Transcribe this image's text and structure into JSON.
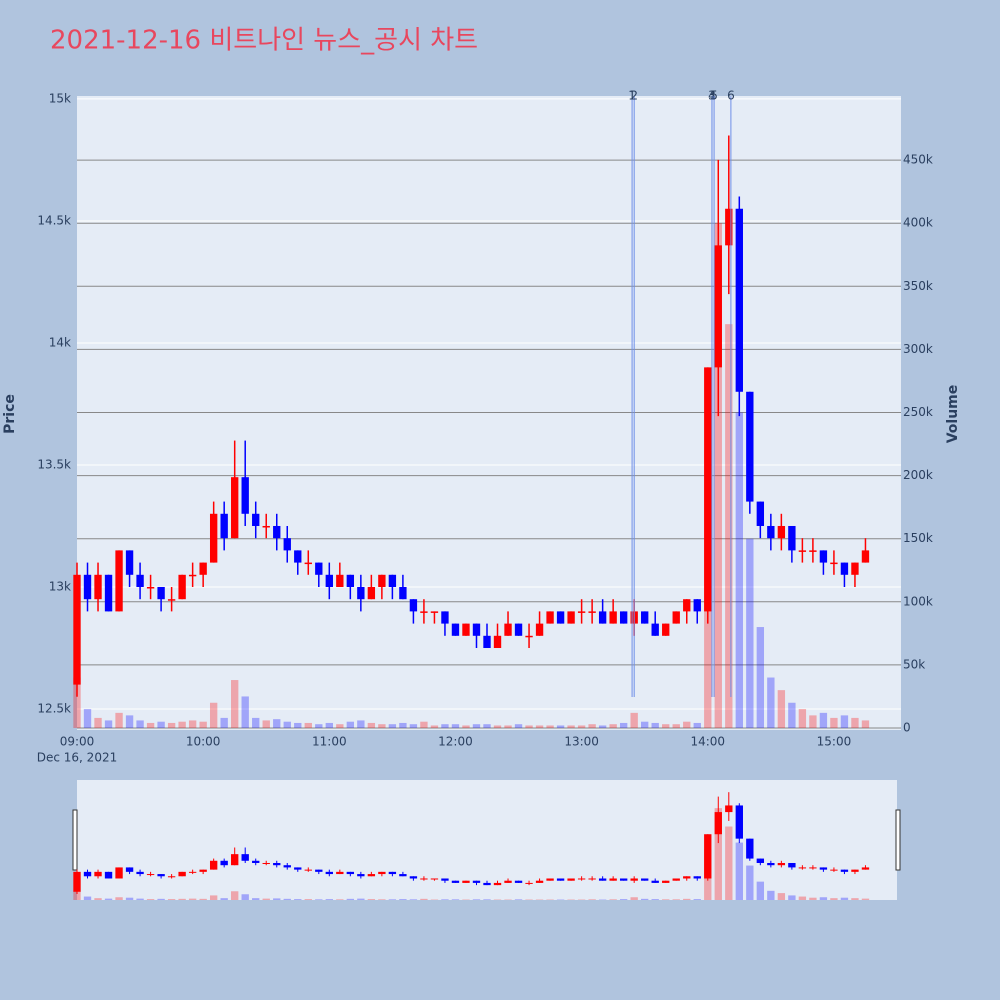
{
  "chart_data": {
    "type": "candlestick",
    "title": "2021-12-16 비트나인 뉴스_공시 차트",
    "y_label": "Price",
    "y2_label": "Volume",
    "x_date_label": "Dec 16, 2021",
    "increasing_color": "#ff0000",
    "decreasing_color": "#0000ff",
    "news_color": "#6f8fe8",
    "x": [
      "2021-12-16 09:00",
      "2021-12-16 09:05",
      "2021-12-16 09:10",
      "2021-12-16 09:15",
      "2021-12-16 09:20",
      "2021-12-16 09:25",
      "2021-12-16 09:30",
      "2021-12-16 09:35",
      "2021-12-16 09:40",
      "2021-12-16 09:45",
      "2021-12-16 09:50",
      "2021-12-16 09:55",
      "2021-12-16 10:00",
      "2021-12-16 10:05",
      "2021-12-16 10:10",
      "2021-12-16 10:15",
      "2021-12-16 10:20",
      "2021-12-16 10:25",
      "2021-12-16 10:30",
      "2021-12-16 10:35",
      "2021-12-16 10:40",
      "2021-12-16 10:45",
      "2021-12-16 10:50",
      "2021-12-16 10:55",
      "2021-12-16 11:00",
      "2021-12-16 11:05",
      "2021-12-16 11:10",
      "2021-12-16 11:15",
      "2021-12-16 11:20",
      "2021-12-16 11:25",
      "2021-12-16 11:30",
      "2021-12-16 11:35",
      "2021-12-16 11:40",
      "2021-12-16 11:45",
      "2021-12-16 11:50",
      "2021-12-16 11:55",
      "2021-12-16 12:00",
      "2021-12-16 12:05",
      "2021-12-16 12:10",
      "2021-12-16 12:15",
      "2021-12-16 12:20",
      "2021-12-16 12:25",
      "2021-12-16 12:30",
      "2021-12-16 12:35",
      "2021-12-16 12:40",
      "2021-12-16 12:45",
      "2021-12-16 12:50",
      "2021-12-16 12:55",
      "2021-12-16 13:00",
      "2021-12-16 13:05",
      "2021-12-16 13:10",
      "2021-12-16 13:15",
      "2021-12-16 13:20",
      "2021-12-16 13:25",
      "2021-12-16 13:30",
      "2021-12-16 13:35",
      "2021-12-16 13:40",
      "2021-12-16 13:45",
      "2021-12-16 13:50",
      "2021-12-16 13:55",
      "2021-12-16 14:00",
      "2021-12-16 14:05",
      "2021-12-16 14:10",
      "2021-12-16 14:15",
      "2021-12-16 14:20",
      "2021-12-16 14:25",
      "2021-12-16 14:30",
      "2021-12-16 14:35",
      "2021-12-16 14:40",
      "2021-12-16 14:45",
      "2021-12-16 14:50",
      "2021-12-16 14:55",
      "2021-12-16 15:00",
      "2021-12-16 15:05",
      "2021-12-16 15:10",
      "2021-12-16 15:15"
    ],
    "open": [
      12600,
      13050,
      12950,
      13050,
      12900,
      13150,
      13050,
      13000,
      13000,
      12950,
      12950,
      13050,
      13050,
      13100,
      13300,
      13200,
      13450,
      13300,
      13250,
      13250,
      13200,
      13150,
      13100,
      13100,
      13050,
      13000,
      13050,
      13000,
      12950,
      13000,
      13050,
      13000,
      12950,
      12900,
      12900,
      12900,
      12850,
      12800,
      12850,
      12800,
      12750,
      12800,
      12850,
      12800,
      12800,
      12850,
      12900,
      12850,
      12900,
      12900,
      12900,
      12850,
      12900,
      12850,
      12900,
      12850,
      12800,
      12850,
      12900,
      12950,
      12900,
      13900,
      14400,
      14550,
      13800,
      13350,
      13250,
      13200,
      13250,
      13150,
      13150,
      13150,
      13100,
      13100,
      13050,
      13100
    ],
    "high": [
      13100,
      13100,
      13100,
      13050,
      13150,
      13150,
      13100,
      13050,
      13000,
      13000,
      13050,
      13100,
      13100,
      13350,
      13350,
      13600,
      13600,
      13350,
      13300,
      13300,
      13250,
      13150,
      13150,
      13100,
      13100,
      13100,
      13050,
      13050,
      13050,
      13050,
      13050,
      13050,
      12950,
      12950,
      12900,
      12900,
      12850,
      12850,
      12850,
      12850,
      12850,
      12900,
      12850,
      12850,
      12900,
      12900,
      12900,
      12900,
      12950,
      12950,
      12950,
      12950,
      12900,
      12950,
      12900,
      12900,
      12850,
      12900,
      12950,
      12950,
      13900,
      14750,
      14850,
      14600,
      13800,
      13350,
      13300,
      13300,
      13250,
      13200,
      13200,
      13150,
      13150,
      13100,
      13100,
      13200
    ],
    "low": [
      12550,
      12900,
      12900,
      12900,
      12900,
      13000,
      12950,
      12950,
      12900,
      12900,
      12950,
      13000,
      13000,
      13100,
      13150,
      13200,
      13250,
      13200,
      13200,
      13150,
      13100,
      13050,
      13050,
      13000,
      12950,
      13000,
      12950,
      12900,
      12950,
      12950,
      12950,
      12950,
      12850,
      12850,
      12850,
      12800,
      12800,
      12800,
      12750,
      12750,
      12750,
      12800,
      12800,
      12750,
      12800,
      12850,
      12850,
      12850,
      12850,
      12850,
      12850,
      12850,
      12850,
      12800,
      12850,
      12800,
      12800,
      12850,
      12850,
      12850,
      12850,
      13700,
      14200,
      13700,
      13300,
      13200,
      13150,
      13150,
      13100,
      13100,
      13100,
      13050,
      13050,
      13000,
      13000,
      13100
    ],
    "close": [
      13050,
      12950,
      13050,
      12900,
      13150,
      13050,
      13000,
      13000,
      12950,
      12950,
      13050,
      13050,
      13100,
      13300,
      13200,
      13450,
      13300,
      13250,
      13250,
      13200,
      13150,
      13100,
      13100,
      13050,
      13000,
      13050,
      13000,
      12950,
      13000,
      13050,
      13000,
      12950,
      12900,
      12900,
      12900,
      12850,
      12800,
      12850,
      12800,
      12750,
      12800,
      12850,
      12800,
      12800,
      12850,
      12900,
      12850,
      12900,
      12900,
      12900,
      12850,
      12900,
      12850,
      12900,
      12850,
      12800,
      12850,
      12900,
      12950,
      12900,
      13900,
      14400,
      14550,
      13800,
      13350,
      13250,
      13200,
      13250,
      13150,
      13150,
      13150,
      13100,
      13100,
      13050,
      13100,
      13150
    ],
    "volume": [
      40000,
      15000,
      8000,
      6000,
      12000,
      10000,
      6000,
      4000,
      5000,
      4000,
      5000,
      6000,
      5000,
      20000,
      8000,
      38000,
      25000,
      8000,
      6000,
      7000,
      5000,
      4000,
      4000,
      3000,
      4000,
      3000,
      5000,
      6000,
      4000,
      3000,
      3000,
      4000,
      3000,
      5000,
      2000,
      3000,
      3000,
      2000,
      3000,
      3000,
      2000,
      2000,
      3000,
      2000,
      2000,
      2000,
      2000,
      2000,
      2000,
      3000,
      2000,
      3000,
      4000,
      12000,
      5000,
      4000,
      3000,
      3000,
      5000,
      4000,
      220000,
      400000,
      320000,
      250000,
      150000,
      80000,
      40000,
      30000,
      20000,
      15000,
      10000,
      12000,
      8000,
      10000,
      8000,
      6000
    ],
    "xlim": [
      "2021-12-16 09:00",
      "2021-12-16 15:30"
    ],
    "xticks": [
      {
        "value": "2021-12-16 09:00",
        "label": "09:00"
      },
      {
        "value": "2021-12-16 10:00",
        "label": "10:00"
      },
      {
        "value": "2021-12-16 11:00",
        "label": "11:00"
      },
      {
        "value": "2021-12-16 12:00",
        "label": "12:00"
      },
      {
        "value": "2021-12-16 13:00",
        "label": "13:00"
      },
      {
        "value": "2021-12-16 14:00",
        "label": "14:00"
      },
      {
        "value": "2021-12-16 15:00",
        "label": "15:00"
      }
    ],
    "ylim": [
      12414,
      15012
    ],
    "yticks": [
      {
        "value": 12500,
        "label": "12.5k"
      },
      {
        "value": 13000,
        "label": "13k"
      },
      {
        "value": 13500,
        "label": "13.5k"
      },
      {
        "value": 14000,
        "label": "14k"
      },
      {
        "value": 14500,
        "label": "14.5k"
      },
      {
        "value": 15000,
        "label": "15k"
      }
    ],
    "y2lim": [
      0,
      500800
    ],
    "y2ticks": [
      0,
      {
        "value": 50000,
        "label": "50k"
      },
      {
        "value": 100000,
        "label": "100k"
      },
      {
        "value": 150000,
        "label": "150k"
      },
      {
        "value": 200000,
        "label": "200k"
      },
      {
        "value": 250000,
        "label": "250k"
      },
      {
        "value": 300000,
        "label": "300k"
      },
      {
        "value": 350000,
        "label": "350k"
      },
      {
        "value": 400000,
        "label": "400k"
      },
      {
        "value": 450000,
        "label": "450k"
      }
    ],
    "news": [
      {
        "label": "1",
        "x": "2021-12-16 13:24"
      },
      {
        "label": "2",
        "x": "2021-12-16 13:25"
      },
      {
        "label": "3",
        "x": "2021-12-16 14:02"
      },
      {
        "label": "4",
        "x": "2021-12-16 14:02"
      },
      {
        "label": "5",
        "x": "2021-12-16 14:03"
      },
      {
        "label": "6",
        "x": "2021-12-16 14:11"
      }
    ]
  }
}
